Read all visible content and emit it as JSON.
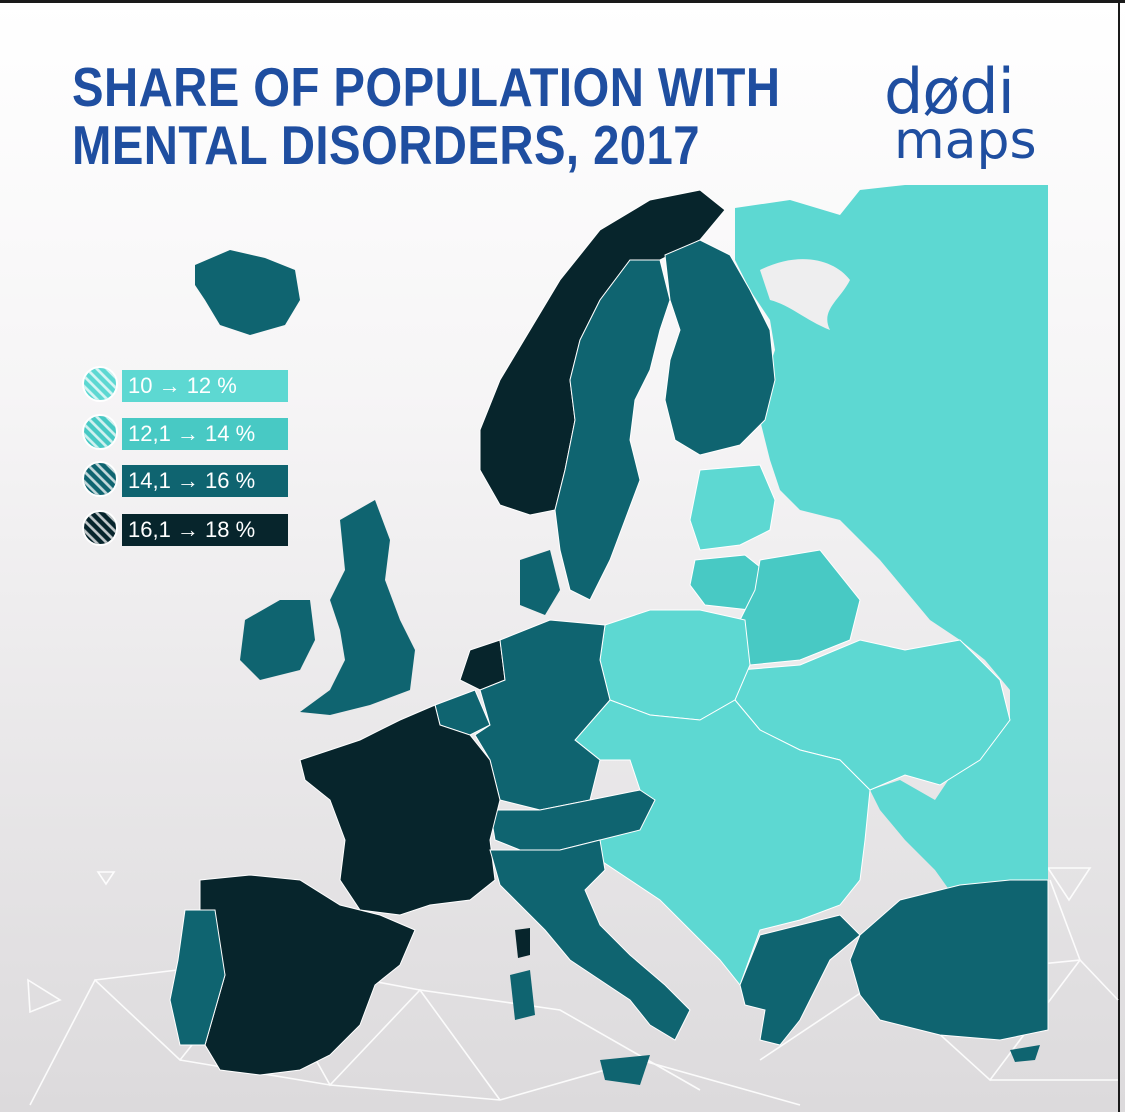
{
  "title": {
    "line1": "SHARE OF POPULATION WITH",
    "line2": "MENTAL DISORDERS, 2017"
  },
  "logo": {
    "top": "dødi",
    "bottom": "maps"
  },
  "colors": {
    "c1": "#5dd8d2",
    "c2": "#48c9c4",
    "c3": "#0f6470",
    "c4": "#07252c",
    "title": "#1f4ea0",
    "water": "#eeeeef"
  },
  "legend": [
    {
      "label": "10 → 12 %",
      "color": "#5dd8d2"
    },
    {
      "label": "12,1 → 14 %",
      "color": "#48c9c4"
    },
    {
      "label": "14,1 → 16 %",
      "color": "#0f6470"
    },
    {
      "label": "16,1 → 18 %",
      "color": "#07252c"
    }
  ]
}
